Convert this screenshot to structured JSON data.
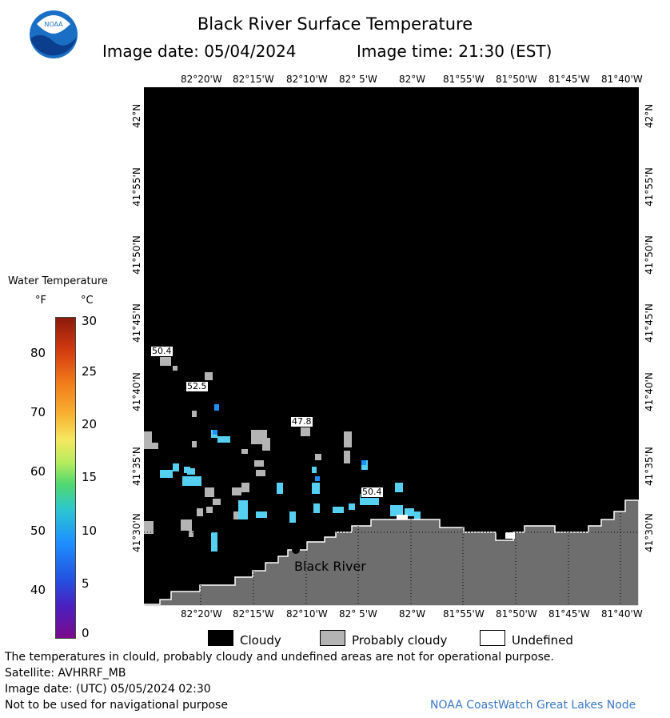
{
  "header": {
    "title": "Black River Surface Temperature",
    "image_date": "Image date: 05/04/2024",
    "image_time": "Image time: 21:30 (EST)"
  },
  "logo": {
    "text": "NOAA",
    "icon": "noaa-logo-icon"
  },
  "map": {
    "lon_labels": [
      "82°20'W",
      "82°15'W",
      "82°10'W",
      "82° 5'W",
      "82°W",
      "81°55'W",
      "81°50'W",
      "81°45'W",
      "81°40'W"
    ],
    "lat_labels": [
      "42°N",
      "41°55'N",
      "41°50'N",
      "41°45'N",
      "41°40'N",
      "41°35'N",
      "41°30'N"
    ],
    "place_label": "Black River",
    "value_labels": [
      "50.4",
      "52.5",
      "47.8",
      "50.4"
    ],
    "colors": {
      "cloud": "#000000",
      "land": "#6e6e6e",
      "probably_cloudy": "#b4b4b4",
      "water": "#55d0f0"
    }
  },
  "colorbar": {
    "title": "Water Temperature",
    "unit_f": "°F",
    "unit_c": "°C",
    "f_ticks": [
      "80",
      "70",
      "60",
      "50",
      "40"
    ],
    "c_ticks": [
      "30",
      "25",
      "20",
      "15",
      "10",
      "5",
      "0"
    ]
  },
  "legend": {
    "items": [
      {
        "label": "Cloudy",
        "color": "#000000"
      },
      {
        "label": "Probably cloudy",
        "color": "#b4b4b4"
      },
      {
        "label": "Undefined",
        "color": "#ffffff"
      }
    ]
  },
  "footer": {
    "disclaimer": "The temperatures in clould, probably cloudy and undefined areas are not for operational purpose.",
    "satellite": "Satellite: AVHRRF_MB",
    "utc_date": "Image date: (UTC) 05/05/2024  02:30",
    "nav_warning": "Not to be used for navigational purpose",
    "credit": "NOAA CoastWatch Great Lakes Node"
  }
}
